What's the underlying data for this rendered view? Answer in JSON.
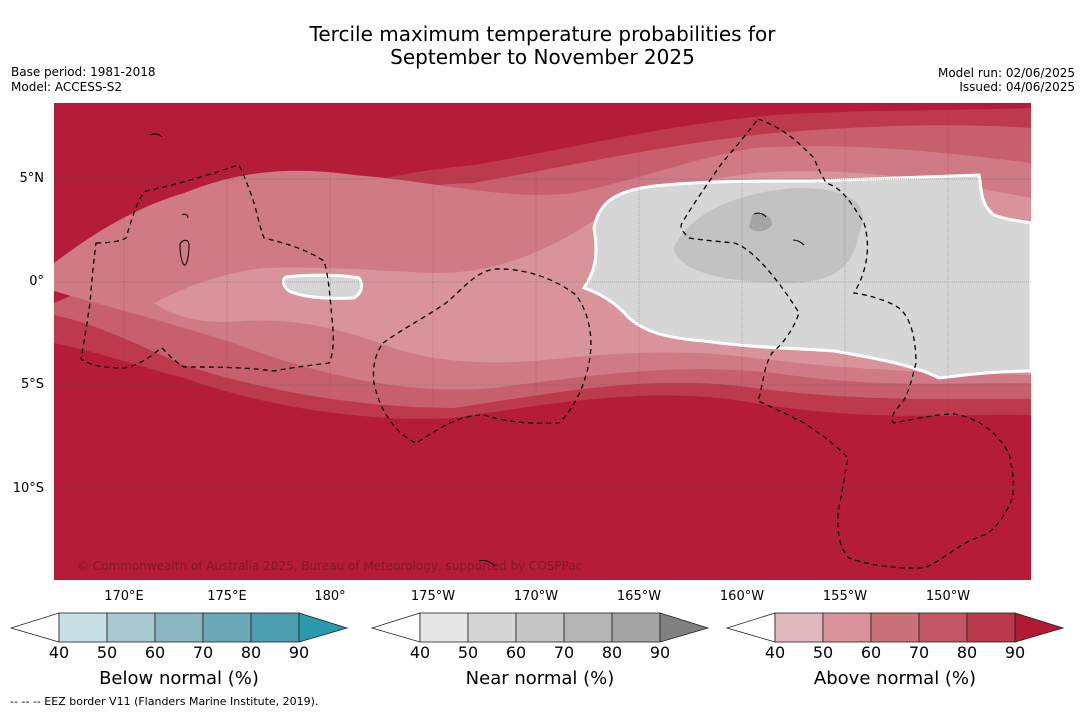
{
  "title": {
    "line1": "Tercile maximum temperature probabilities for",
    "line2": "September to November 2025"
  },
  "meta": {
    "base_period": "Base period: 1981-2018",
    "model": "Model: ACCESS-S2",
    "model_run": "Model run: 02/06/2025",
    "issued": "Issued: 04/06/2025"
  },
  "map": {
    "lat_labels": [
      "5°N",
      "0°",
      "5°S",
      "10°S"
    ],
    "lon_labels": [
      "170°E",
      "175°E",
      "180°",
      "175°W",
      "170°W",
      "165°W",
      "160°W",
      "155°W",
      "150°W"
    ],
    "copyright": "© Commonwealth of Australia 2025, Bureau of Meteorology, supported by COSPPac",
    "colors": {
      "above_90": "#b41c38",
      "above_80": "#bd3a4c",
      "above_70": "#c85f6d",
      "above_60": "#cf7a84",
      "above_50": "#d8939b",
      "near_50": "#d6d6d6",
      "near_70": "#c2c2c2",
      "near_80": "#a4a4a4"
    }
  },
  "colorbars": [
    {
      "title": "Below normal (%)",
      "ticks": [
        "40",
        "50",
        "60",
        "70",
        "80",
        "90"
      ],
      "colors": [
        "#ffffff",
        "#c8e1e7",
        "#a8c8cf",
        "#8ab6c1",
        "#6aaab8",
        "#4aa0b0",
        "#2a9bae"
      ]
    },
    {
      "title": "Near normal (%)",
      "ticks": [
        "40",
        "50",
        "60",
        "70",
        "80",
        "90"
      ],
      "colors": [
        "#ffffff",
        "#e6e6e6",
        "#d6d6d6",
        "#c6c6c6",
        "#b6b6b6",
        "#a4a4a4",
        "#808080"
      ]
    },
    {
      "title": "Above normal (%)",
      "ticks": [
        "40",
        "50",
        "60",
        "70",
        "80",
        "90"
      ],
      "colors": [
        "#ffffff",
        "#e1b8be",
        "#d8939b",
        "#cb7179",
        "#c25866",
        "#ba3a4c",
        "#b21a33"
      ]
    }
  ],
  "footer": "-- -- -- EEZ border V11 (Flanders Marine Institute, 2019)."
}
